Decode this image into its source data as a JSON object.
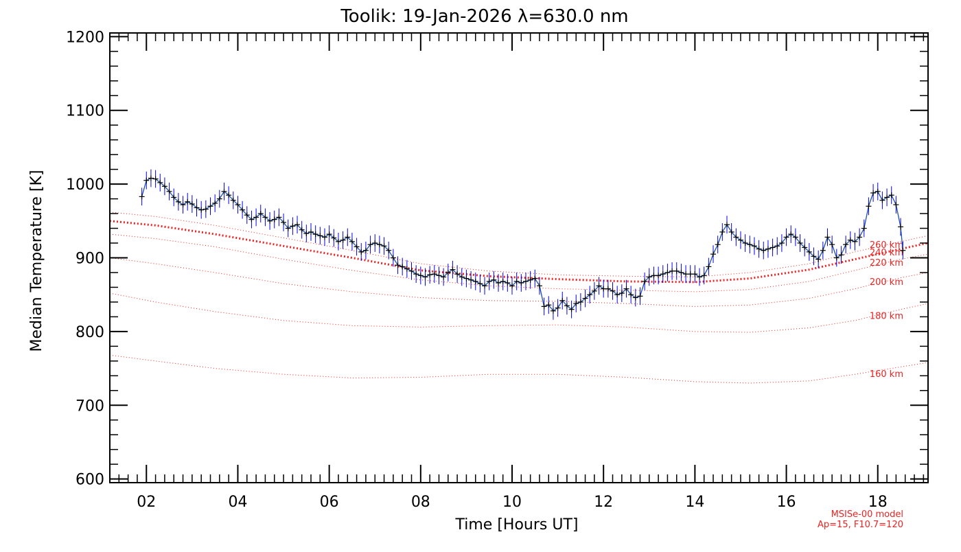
{
  "chart_data": {
    "type": "line",
    "title": "Toolik: 19-Jan-2026 λ=630.0 nm",
    "xlabel": "Time [Hours UT]",
    "ylabel": "Median Temperature [K]",
    "xlim": [
      1.2,
      19.1
    ],
    "ylim": [
      595,
      1205
    ],
    "xticks": [
      2,
      4,
      6,
      8,
      10,
      12,
      14,
      16,
      18
    ],
    "xtick_labels": [
      "02",
      "04",
      "06",
      "08",
      "10",
      "12",
      "14",
      "16",
      "18"
    ],
    "yticks": [
      600,
      700,
      800,
      900,
      1000,
      1100,
      1200
    ],
    "ytick_labels": [
      "600",
      "700",
      "800",
      "900",
      "1000",
      "1100",
      "1200"
    ],
    "grid": false,
    "colors": {
      "data_line": "#1f4fa8",
      "error_bar": "#0000ee",
      "marker": "#000000",
      "model": "#ee2222"
    },
    "series": [
      {
        "style": "line-with-markers-and-errorbars",
        "error": 12,
        "points": [
          [
            1.9,
            983
          ],
          [
            2.0,
            1005
          ],
          [
            2.1,
            1008
          ],
          [
            2.2,
            1007
          ],
          [
            2.3,
            1002
          ],
          [
            2.4,
            997
          ],
          [
            2.5,
            990
          ],
          [
            2.6,
            982
          ],
          [
            2.7,
            976
          ],
          [
            2.8,
            972
          ],
          [
            2.9,
            976
          ],
          [
            3.0,
            973
          ],
          [
            3.1,
            968
          ],
          [
            3.2,
            965
          ],
          [
            3.3,
            966
          ],
          [
            3.4,
            970
          ],
          [
            3.5,
            974
          ],
          [
            3.6,
            980
          ],
          [
            3.7,
            990
          ],
          [
            3.8,
            985
          ],
          [
            3.9,
            978
          ],
          [
            4.0,
            972
          ],
          [
            4.1,
            965
          ],
          [
            4.2,
            958
          ],
          [
            4.3,
            952
          ],
          [
            4.4,
            955
          ],
          [
            4.5,
            960
          ],
          [
            4.6,
            955
          ],
          [
            4.7,
            950
          ],
          [
            4.8,
            952
          ],
          [
            4.9,
            955
          ],
          [
            5.0,
            948
          ],
          [
            5.1,
            940
          ],
          [
            5.2,
            943
          ],
          [
            5.3,
            945
          ],
          [
            5.4,
            938
          ],
          [
            5.5,
            933
          ],
          [
            5.6,
            935
          ],
          [
            5.7,
            932
          ],
          [
            5.8,
            930
          ],
          [
            5.9,
            928
          ],
          [
            6.0,
            932
          ],
          [
            6.1,
            927
          ],
          [
            6.2,
            922
          ],
          [
            6.3,
            924
          ],
          [
            6.4,
            928
          ],
          [
            6.5,
            922
          ],
          [
            6.6,
            915
          ],
          [
            6.7,
            908
          ],
          [
            6.8,
            910
          ],
          [
            6.9,
            918
          ],
          [
            7.0,
            920
          ],
          [
            7.1,
            918
          ],
          [
            7.2,
            916
          ],
          [
            7.3,
            910
          ],
          [
            7.4,
            900
          ],
          [
            7.5,
            890
          ],
          [
            7.6,
            888
          ],
          [
            7.7,
            885
          ],
          [
            7.8,
            882
          ],
          [
            7.9,
            878
          ],
          [
            8.0,
            876
          ],
          [
            8.1,
            874
          ],
          [
            8.2,
            877
          ],
          [
            8.3,
            878
          ],
          [
            8.4,
            876
          ],
          [
            8.5,
            874
          ],
          [
            8.6,
            880
          ],
          [
            8.7,
            884
          ],
          [
            8.8,
            878
          ],
          [
            8.9,
            874
          ],
          [
            9.0,
            872
          ],
          [
            9.1,
            870
          ],
          [
            9.2,
            868
          ],
          [
            9.3,
            865
          ],
          [
            9.4,
            862
          ],
          [
            9.5,
            868
          ],
          [
            9.6,
            870
          ],
          [
            9.7,
            866
          ],
          [
            9.8,
            868
          ],
          [
            9.9,
            866
          ],
          [
            10.0,
            862
          ],
          [
            10.1,
            868
          ],
          [
            10.2,
            866
          ],
          [
            10.3,
            868
          ],
          [
            10.4,
            870
          ],
          [
            10.5,
            872
          ],
          [
            10.6,
            862
          ],
          [
            10.7,
            834
          ],
          [
            10.8,
            836
          ],
          [
            10.9,
            828
          ],
          [
            11.0,
            832
          ],
          [
            11.1,
            842
          ],
          [
            11.2,
            835
          ],
          [
            11.3,
            830
          ],
          [
            11.4,
            838
          ],
          [
            11.5,
            840
          ],
          [
            11.6,
            845
          ],
          [
            11.7,
            850
          ],
          [
            11.8,
            855
          ],
          [
            11.9,
            862
          ],
          [
            12.0,
            858
          ],
          [
            12.1,
            858
          ],
          [
            12.2,
            855
          ],
          [
            12.3,
            850
          ],
          [
            12.4,
            852
          ],
          [
            12.5,
            858
          ],
          [
            12.6,
            850
          ],
          [
            12.7,
            846
          ],
          [
            12.8,
            848
          ],
          [
            12.9,
            868
          ],
          [
            13.0,
            874
          ],
          [
            13.1,
            876
          ],
          [
            13.2,
            876
          ],
          [
            13.3,
            878
          ],
          [
            13.4,
            880
          ],
          [
            13.5,
            882
          ],
          [
            13.6,
            882
          ],
          [
            13.7,
            880
          ],
          [
            13.8,
            878
          ],
          [
            13.9,
            878
          ],
          [
            14.0,
            878
          ],
          [
            14.1,
            874
          ],
          [
            14.2,
            876
          ],
          [
            14.3,
            888
          ],
          [
            14.4,
            905
          ],
          [
            14.5,
            918
          ],
          [
            14.6,
            935
          ],
          [
            14.7,
            945
          ],
          [
            14.8,
            935
          ],
          [
            14.9,
            928
          ],
          [
            15.0,
            924
          ],
          [
            15.1,
            920
          ],
          [
            15.2,
            918
          ],
          [
            15.3,
            916
          ],
          [
            15.4,
            912
          ],
          [
            15.5,
            910
          ],
          [
            15.6,
            912
          ],
          [
            15.7,
            914
          ],
          [
            15.8,
            916
          ],
          [
            15.9,
            920
          ],
          [
            16.0,
            928
          ],
          [
            16.1,
            932
          ],
          [
            16.2,
            928
          ],
          [
            16.3,
            920
          ],
          [
            16.4,
            914
          ],
          [
            16.5,
            908
          ],
          [
            16.6,
            902
          ],
          [
            16.7,
            898
          ],
          [
            16.8,
            910
          ],
          [
            16.9,
            928
          ],
          [
            17.0,
            918
          ],
          [
            17.1,
            900
          ],
          [
            17.2,
            904
          ],
          [
            17.3,
            918
          ],
          [
            17.4,
            924
          ],
          [
            17.5,
            922
          ],
          [
            17.6,
            928
          ],
          [
            17.7,
            940
          ],
          [
            17.8,
            970
          ],
          [
            17.9,
            988
          ],
          [
            18.0,
            990
          ],
          [
            18.1,
            978
          ],
          [
            18.2,
            982
          ],
          [
            18.3,
            985
          ],
          [
            18.4,
            972
          ],
          [
            18.5,
            942
          ],
          [
            18.55,
            910
          ]
        ]
      }
    ],
    "model_curves": [
      {
        "label": "160 km",
        "style": "dotted",
        "points": [
          [
            1.2,
            768
          ],
          [
            2.2,
            760
          ],
          [
            3.5,
            750
          ],
          [
            5,
            742
          ],
          [
            6.5,
            737
          ],
          [
            8,
            738
          ],
          [
            9.5,
            742
          ],
          [
            11,
            742
          ],
          [
            12.5,
            738
          ],
          [
            14,
            732
          ],
          [
            15.2,
            730
          ],
          [
            16.5,
            733
          ],
          [
            17.5,
            742
          ],
          [
            18.5,
            752
          ],
          [
            19.1,
            758
          ]
        ]
      },
      {
        "label": "180 km",
        "style": "dotted",
        "points": [
          [
            1.2,
            852
          ],
          [
            2.2,
            840
          ],
          [
            3.5,
            827
          ],
          [
            5,
            815
          ],
          [
            6.5,
            808
          ],
          [
            8,
            806
          ],
          [
            9.5,
            808
          ],
          [
            11,
            809
          ],
          [
            12.5,
            806
          ],
          [
            14,
            800
          ],
          [
            15.2,
            799
          ],
          [
            16.5,
            805
          ],
          [
            17.5,
            815
          ],
          [
            18.5,
            830
          ],
          [
            19.1,
            838
          ]
        ]
      },
      {
        "label": "200 km",
        "style": "dotted",
        "points": [
          [
            1.2,
            900
          ],
          [
            2.2,
            892
          ],
          [
            3.5,
            880
          ],
          [
            5,
            865
          ],
          [
            6.5,
            854
          ],
          [
            8,
            846
          ],
          [
            9.5,
            842
          ],
          [
            11,
            841
          ],
          [
            12.5,
            838
          ],
          [
            14,
            834
          ],
          [
            15.2,
            836
          ],
          [
            16.5,
            845
          ],
          [
            17.5,
            858
          ],
          [
            18.5,
            873
          ],
          [
            19.1,
            880
          ]
        ]
      },
      {
        "label": "220 km",
        "style": "dotted",
        "points": [
          [
            1.2,
            932
          ],
          [
            2.2,
            926
          ],
          [
            3.5,
            915
          ],
          [
            5,
            898
          ],
          [
            6.5,
            883
          ],
          [
            8,
            870
          ],
          [
            9.5,
            862
          ],
          [
            11,
            858
          ],
          [
            12.5,
            856
          ],
          [
            14,
            854
          ],
          [
            15.2,
            857
          ],
          [
            16.5,
            868
          ],
          [
            17.5,
            883
          ],
          [
            18.5,
            898
          ],
          [
            19.1,
            905
          ]
        ]
      },
      {
        "label": "240 km",
        "style": "dotted-heavy",
        "points": [
          [
            1.2,
            950
          ],
          [
            2.2,
            944
          ],
          [
            3.5,
            932
          ],
          [
            5,
            916
          ],
          [
            6.5,
            900
          ],
          [
            8,
            883
          ],
          [
            9.5,
            875
          ],
          [
            11,
            871
          ],
          [
            12.5,
            868
          ],
          [
            14,
            867
          ],
          [
            15.2,
            872
          ],
          [
            16.5,
            884
          ],
          [
            17.5,
            898
          ],
          [
            18.5,
            912
          ],
          [
            19.1,
            920
          ]
        ]
      },
      {
        "label": "260 km",
        "style": "dotted",
        "points": [
          [
            1.2,
            962
          ],
          [
            2.2,
            956
          ],
          [
            3.5,
            944
          ],
          [
            5,
            927
          ],
          [
            6.5,
            910
          ],
          [
            8,
            892
          ],
          [
            9.5,
            882
          ],
          [
            11,
            877
          ],
          [
            12.5,
            875
          ],
          [
            14,
            874
          ],
          [
            15.2,
            880
          ],
          [
            16.5,
            892
          ],
          [
            17.5,
            908
          ],
          [
            18.5,
            922
          ],
          [
            19.1,
            930
          ]
        ]
      }
    ],
    "model_label_positions": [
      {
        "label": "260 km",
        "y": 917
      },
      {
        "label": "240 km",
        "y": 907
      },
      {
        "label": "220 km",
        "y": 893
      },
      {
        "label": "200 km",
        "y": 867
      },
      {
        "label": "180 km",
        "y": 821
      },
      {
        "label": "160 km",
        "y": 742
      }
    ],
    "annotations": [
      "MSISe-00 model",
      "Ap=15, F10.7=120"
    ]
  }
}
